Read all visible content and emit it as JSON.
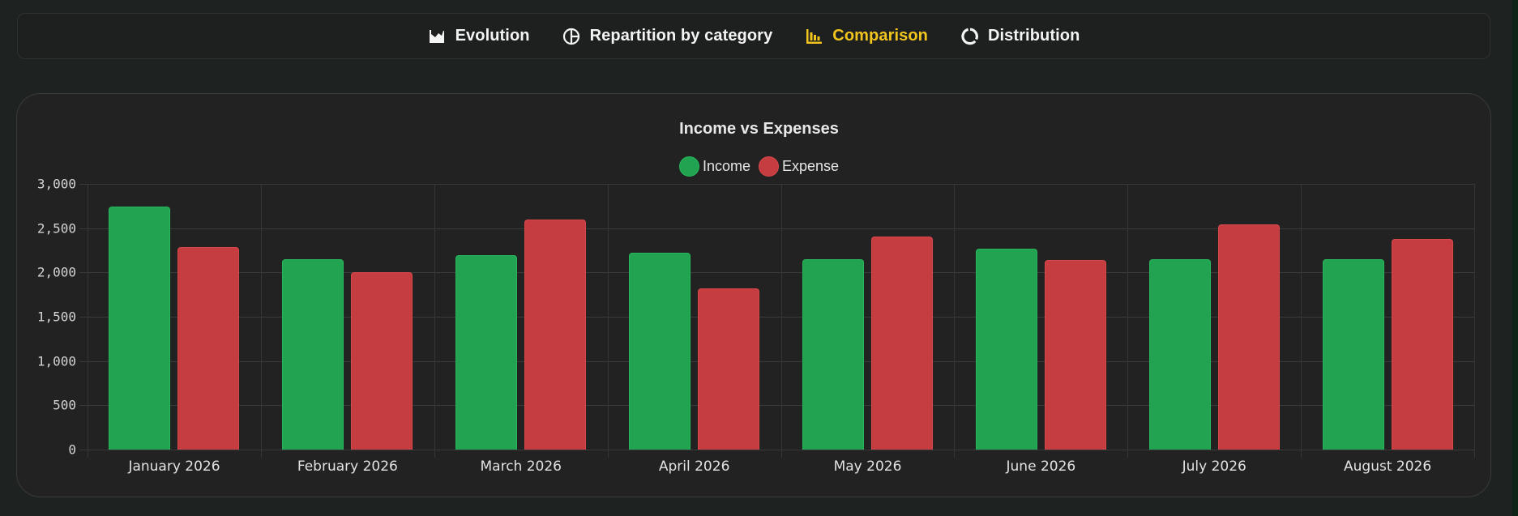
{
  "tabs": [
    {
      "label": "Evolution",
      "icon": "area-chart-icon",
      "active": false
    },
    {
      "label": "Repartition by category",
      "icon": "pie-chart-icon",
      "active": false
    },
    {
      "label": "Comparison",
      "icon": "bar-chart-icon",
      "active": true
    },
    {
      "label": "Distribution",
      "icon": "donut-chart-icon",
      "active": false
    }
  ],
  "colors": {
    "accent": "#f2c51e",
    "income": "#22a352",
    "expense": "#c53d40",
    "page_bg": "#1e2220",
    "panel_bg": "#222222"
  },
  "chart": {
    "title": "Income vs Expenses",
    "legend": [
      {
        "label": "Income",
        "color": "#22a352"
      },
      {
        "label": "Expense",
        "color": "#c53d40"
      }
    ],
    "y_ticks": [
      "0",
      "500",
      "1,000",
      "1,500",
      "2,000",
      "2,500",
      "3,000"
    ],
    "x_labels": [
      "January 2026",
      "February 2026",
      "March 2026",
      "April 2026",
      "May 2026",
      "June 2026",
      "July 2026",
      "August 2026"
    ]
  },
  "chart_data": {
    "type": "bar",
    "title": "Income vs Expenses",
    "xlabel": "",
    "ylabel": "",
    "categories": [
      "January 2026",
      "February 2026",
      "March 2026",
      "April 2026",
      "May 2026",
      "June 2026",
      "July 2026",
      "August 2026"
    ],
    "series": [
      {
        "name": "Income",
        "color": "#22a352",
        "values": [
          2745,
          2145,
          2195,
          2220,
          2145,
          2265,
          2145,
          2145
        ]
      },
      {
        "name": "Expense",
        "color": "#c53d40",
        "values": [
          2290,
          2000,
          2595,
          1820,
          2405,
          2140,
          2545,
          2380
        ]
      }
    ],
    "ylim": [
      0,
      3000
    ],
    "yticks": [
      0,
      500,
      1000,
      1500,
      2000,
      2500,
      3000
    ],
    "grid": true,
    "legend_position": "top"
  }
}
